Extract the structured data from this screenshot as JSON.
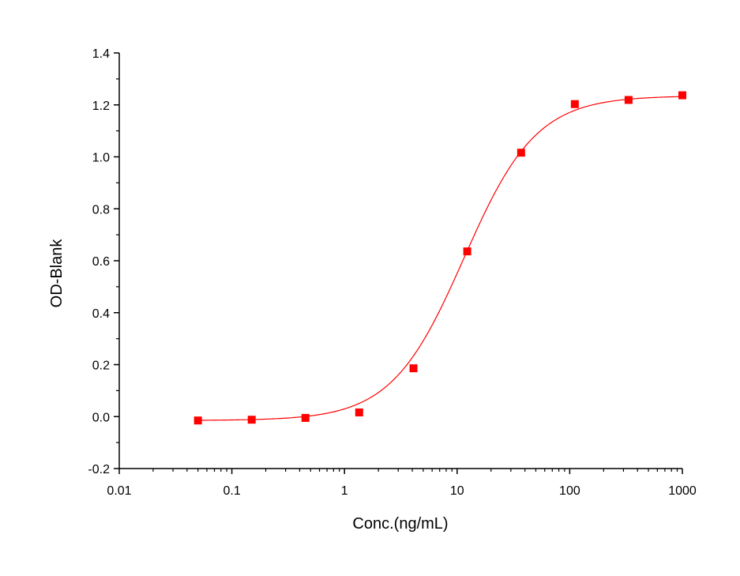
{
  "chart_data": {
    "type": "scatter",
    "title": "",
    "xlabel": "Conc.(ng/mL)",
    "ylabel": "OD-Blank",
    "xscale": "log",
    "xlim": [
      0.01,
      1000
    ],
    "ylim": [
      -0.2,
      1.4
    ],
    "grid": false,
    "legend": "none",
    "x_tick_labels": [
      "0.01",
      "0.1",
      "1",
      "10",
      "100",
      "1000"
    ],
    "x_tick_values": [
      0.01,
      0.1,
      1,
      10,
      100,
      1000
    ],
    "y_tick_labels": [
      "-0.2",
      "0.0",
      "0.2",
      "0.4",
      "0.6",
      "0.8",
      "1.0",
      "1.2",
      "1.4"
    ],
    "y_tick_values": [
      -0.2,
      0.0,
      0.2,
      0.4,
      0.6,
      0.8,
      1.0,
      1.2,
      1.4
    ],
    "series": [
      {
        "marker": "square",
        "color": "#ff0000",
        "x": [
          0.05,
          0.15,
          0.45,
          1.35,
          4.1,
          12.3,
          37,
          111,
          333,
          1000
        ],
        "y": [
          -0.015,
          -0.012,
          -0.005,
          0.016,
          0.186,
          0.636,
          1.016,
          1.203,
          1.219,
          1.237
        ]
      }
    ],
    "fit_curve": {
      "model": "4PL",
      "color": "#ff0000",
      "bottom": -0.015,
      "top": 1.235,
      "ec50": 11.5,
      "hill": 1.35
    }
  }
}
